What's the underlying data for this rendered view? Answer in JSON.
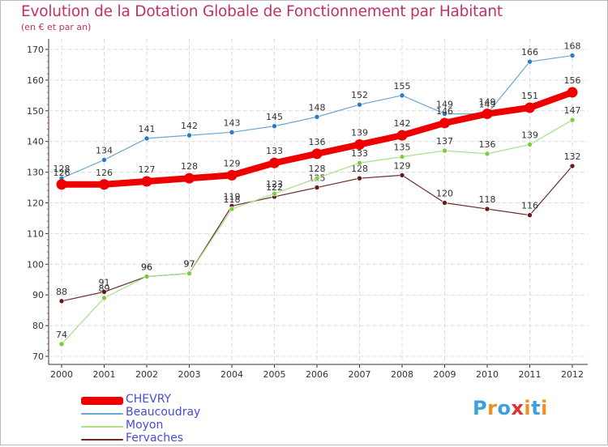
{
  "title": "Evolution de la Dotation Globale de Fonctionnement par Habitant",
  "subtitle": "(en € et par an)",
  "logo": {
    "letters": [
      "P",
      "r",
      "o",
      "x",
      "i",
      "t",
      "i"
    ],
    "colors": [
      "#3fa0e0",
      "#f09020",
      "#3fa0e0",
      "#e03030",
      "#f09020",
      "#3fa0e0",
      "#f09020"
    ]
  },
  "chart_data": {
    "type": "line",
    "title": "Evolution de la Dotation Globale de Fonctionnement par Habitant",
    "subtitle": "(en € et par an)",
    "xlabel": "",
    "ylabel": "",
    "ylim": [
      70,
      170
    ],
    "yticks": [
      70,
      80,
      90,
      100,
      110,
      120,
      130,
      140,
      150,
      160,
      170
    ],
    "grid": true,
    "legend_position": "bottom-left",
    "categories": [
      "2000",
      "2001",
      "2002",
      "2003",
      "2004",
      "2005",
      "2006",
      "2007",
      "2008",
      "2009",
      "2010",
      "2011",
      "2012"
    ],
    "series": [
      {
        "name": "CHEVRY",
        "color": "#ee0000",
        "marker_color": "#ee0000",
        "label_color": "#333333",
        "width": "thick",
        "values": [
          126,
          126,
          127,
          128,
          129,
          133,
          136,
          139,
          142,
          146,
          149,
          151,
          156
        ]
      },
      {
        "name": "Beaucoudray",
        "color": "#6aa6d6",
        "marker_color": "#2a78c8",
        "label_color": "#333333",
        "width": "thin",
        "values": [
          128,
          134,
          141,
          142,
          143,
          145,
          148,
          152,
          155,
          149,
          149,
          166,
          168
        ]
      },
      {
        "name": "Moyon",
        "color": "#a8e088",
        "marker_color": "#7ccc3c",
        "label_color": "#333333",
        "width": "thin",
        "values": [
          74,
          89,
          96,
          97,
          118,
          123,
          128,
          133,
          135,
          137,
          136,
          139,
          147
        ]
      },
      {
        "name": "Fervaches",
        "color": "#6a2a2a",
        "marker_color": "#6a1818",
        "label_color": "#333333",
        "width": "thin",
        "values": [
          88,
          91,
          96,
          97,
          119,
          122,
          125,
          128,
          129,
          120,
          118,
          116,
          132
        ]
      }
    ]
  }
}
